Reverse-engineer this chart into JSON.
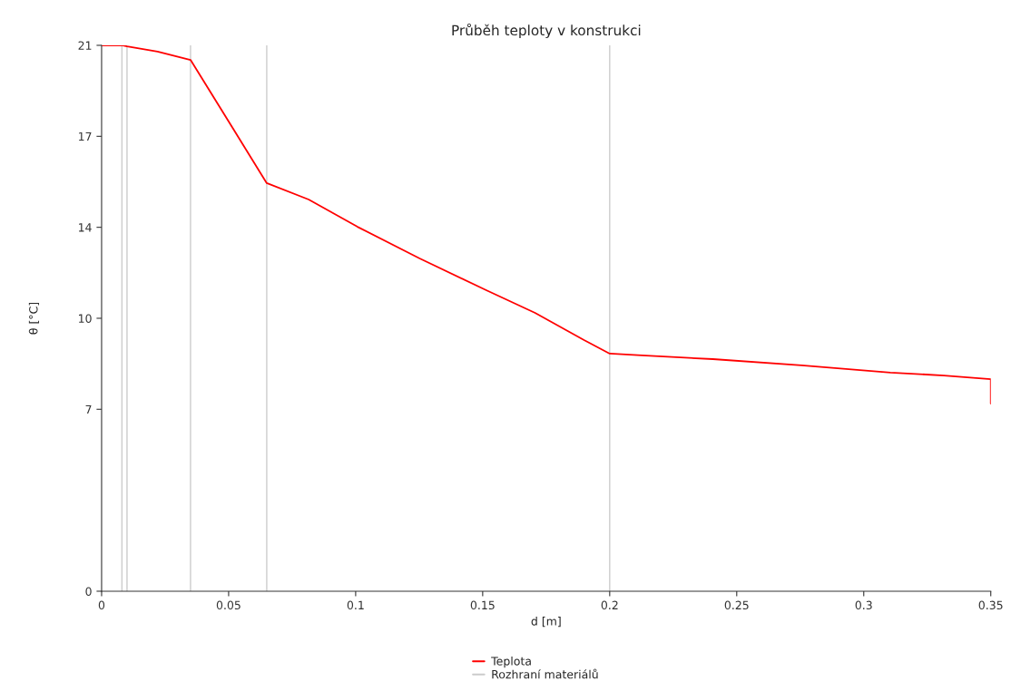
{
  "chart_data": {
    "type": "line",
    "title": "Průběh teploty v konstrukci",
    "xlabel": "d [m]",
    "ylabel": "θ [°C]",
    "xlim": [
      0,
      0.35
    ],
    "xticks": [
      0,
      0.05,
      0.1,
      0.15,
      0.2,
      0.25,
      0.3,
      0.35
    ],
    "ylim": [
      0,
      21
    ],
    "yticks": [
      0,
      {
        "value": 7,
        "label": "7"
      },
      {
        "value": 10.5,
        "label": "10"
      },
      {
        "value": 14,
        "label": "14"
      },
      {
        "value": 17.5,
        "label": "17"
      },
      21
    ],
    "legend": "bottom",
    "ref_lines": [
      {
        "axis": "x",
        "value": 0.008,
        "label": "Rozhraní materiálů",
        "color": "#cccccc"
      },
      {
        "axis": "x",
        "value": 0.01,
        "color": "#cccccc"
      },
      {
        "axis": "x",
        "value": 0.035,
        "color": "#cccccc"
      },
      {
        "axis": "x",
        "value": 0.065,
        "color": "#cccccc"
      },
      {
        "axis": "x",
        "value": 0.2,
        "color": "#cccccc"
      }
    ],
    "series": [
      {
        "name": "Teplota",
        "color": "#ff0000",
        "x": [
          0,
          0.008,
          0.01,
          0.022,
          0.035,
          0.065,
          0.0815,
          0.1007,
          0.1252,
          0.1514,
          0.1706,
          0.1899,
          0.2,
          0.2126,
          0.2406,
          0.2755,
          0.3105,
          0.3315,
          0.35,
          0.35
        ],
        "values": [
          21,
          21,
          20.96,
          20.76,
          20.44,
          15.7,
          15.07,
          14.02,
          12.8,
          11.58,
          10.71,
          9.66,
          9.14,
          9.07,
          8.93,
          8.69,
          8.41,
          8.3,
          8.16,
          7.22
        ]
      }
    ]
  }
}
